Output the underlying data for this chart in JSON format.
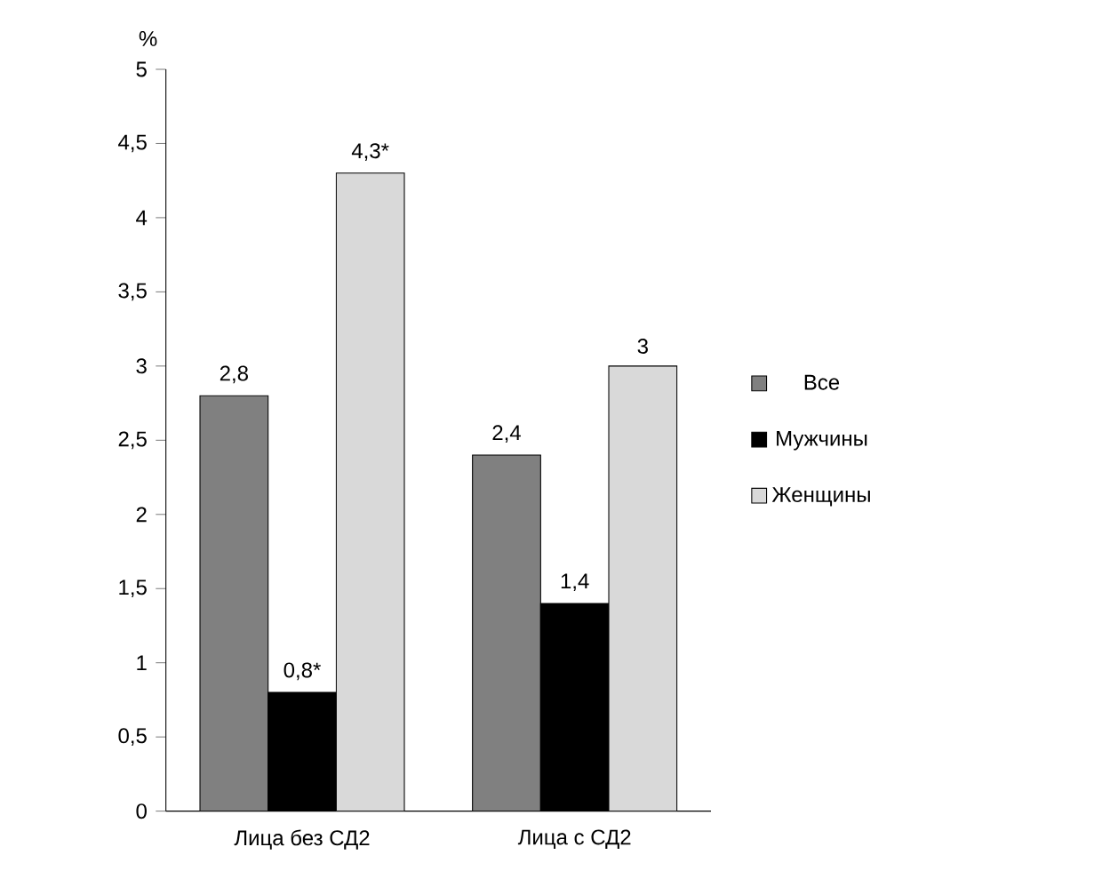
{
  "chart_data": {
    "type": "bar",
    "ylabel": "%",
    "categories": [
      "Лица без СД2",
      "Лица с СД2"
    ],
    "series": [
      {
        "name": "Все",
        "color": "#808080",
        "values": [
          2.8,
          2.4
        ],
        "value_labels": [
          "2,8",
          "2,4"
        ]
      },
      {
        "name": "Мужчины",
        "color": "#000000",
        "values": [
          0.8,
          1.4
        ],
        "value_labels": [
          "0,8*",
          "1,4"
        ]
      },
      {
        "name": "Женщины",
        "color": "#d9d9d9",
        "values": [
          4.3,
          3
        ],
        "value_labels": [
          "4,3*",
          "3"
        ]
      }
    ],
    "ylim": [
      0,
      5
    ],
    "yticks": [
      0,
      {
        "value": 0.5,
        "label": "0,5"
      },
      1,
      {
        "value": 1.5,
        "label": "1,5"
      },
      2,
      {
        "value": 2.5,
        "label": "2,5"
      },
      3,
      {
        "value": 3.5,
        "label": "3,5"
      },
      4,
      {
        "value": 4.5,
        "label": "4,5"
      },
      5
    ],
    "grid": false,
    "legend": "right"
  }
}
